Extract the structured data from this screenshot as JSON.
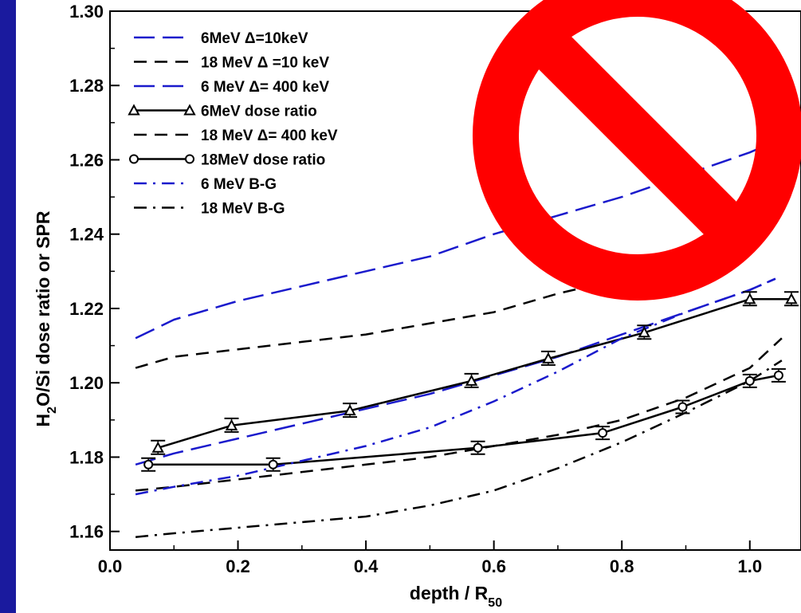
{
  "chart_data": {
    "type": "line",
    "xlabel": "depth / R",
    "xlabel_sub": "50",
    "ylabel_pre": "H",
    "ylabel_sub": "2",
    "ylabel_post": "O/Si dose ratio or SPR",
    "xlim": [
      0.0,
      1.08
    ],
    "ylim": [
      1.155,
      1.3
    ],
    "xticks": [
      0.0,
      0.2,
      0.4,
      0.6,
      0.8,
      1.0
    ],
    "xtick_labels": [
      "0.0",
      "0.2",
      "0.4",
      "0.6",
      "0.8",
      "1.0"
    ],
    "yticks": [
      1.16,
      1.18,
      1.2,
      1.22,
      1.24,
      1.26,
      1.28,
      1.3
    ],
    "ytick_labels": [
      "1.16",
      "1.18",
      "1.20",
      "1.22",
      "1.24",
      "1.26",
      "1.28",
      "1.30"
    ],
    "legend_position": "top-left",
    "series": [
      {
        "name": "6MeV Δ=10keV",
        "color": "#1a1acc",
        "style": "long-dash",
        "x": [
          0.04,
          0.1,
          0.2,
          0.3,
          0.4,
          0.5,
          0.6,
          0.7,
          0.8,
          0.9,
          1.0,
          1.04
        ],
        "y": [
          1.212,
          1.217,
          1.222,
          1.226,
          1.23,
          1.234,
          1.24,
          1.245,
          1.25,
          1.256,
          1.262,
          1.265
        ]
      },
      {
        "name": "18 MeV Δ =10 keV",
        "color": "#000000",
        "style": "dash",
        "x": [
          0.04,
          0.1,
          0.2,
          0.3,
          0.4,
          0.5,
          0.6,
          0.7,
          0.8,
          0.9,
          1.0,
          1.05
        ],
        "y": [
          1.204,
          1.207,
          1.209,
          1.211,
          1.213,
          1.216,
          1.219,
          1.224,
          1.228,
          1.234,
          1.242,
          1.248
        ]
      },
      {
        "name": "6 MeV Δ= 400 keV",
        "color": "#1a1acc",
        "style": "long-dash",
        "x": [
          0.04,
          0.1,
          0.2,
          0.3,
          0.4,
          0.5,
          0.6,
          0.7,
          0.8,
          0.9,
          1.0,
          1.04
        ],
        "y": [
          1.178,
          1.181,
          1.185,
          1.189,
          1.193,
          1.197,
          1.202,
          1.207,
          1.213,
          1.219,
          1.225,
          1.228
        ]
      },
      {
        "name": "6MeV dose ratio",
        "color": "#000000",
        "style": "solid",
        "marker": "triangle",
        "x": [
          0.075,
          0.19,
          0.375,
          0.565,
          0.685,
          0.835,
          1.0,
          1.065
        ],
        "y": [
          1.1825,
          1.1885,
          1.1925,
          1.2005,
          1.2065,
          1.2135,
          1.2225,
          1.2225
        ]
      },
      {
        "name": "18 MeV Δ= 400 keV",
        "color": "#000000",
        "style": "dash",
        "x": [
          0.04,
          0.1,
          0.2,
          0.3,
          0.4,
          0.5,
          0.6,
          0.7,
          0.8,
          0.9,
          1.0,
          1.05
        ],
        "y": [
          1.171,
          1.172,
          1.174,
          1.176,
          1.178,
          1.18,
          1.183,
          1.186,
          1.19,
          1.196,
          1.204,
          1.212
        ]
      },
      {
        "name": "18MeV dose ratio",
        "color": "#000000",
        "style": "solid",
        "marker": "circle",
        "x": [
          0.06,
          0.255,
          0.575,
          0.77,
          0.895,
          1.0,
          1.045
        ],
        "y": [
          1.178,
          1.178,
          1.1825,
          1.1865,
          1.1935,
          1.2005,
          1.202
        ]
      },
      {
        "name": "6 MeV B-G",
        "color": "#1a1acc",
        "style": "dash-dot",
        "x": [
          0.04,
          0.1,
          0.2,
          0.3,
          0.4,
          0.5,
          0.6,
          0.7,
          0.8,
          0.9,
          1.0,
          1.04
        ],
        "y": [
          1.17,
          1.172,
          1.175,
          1.179,
          1.183,
          1.188,
          1.195,
          1.203,
          1.212,
          1.219,
          1.225,
          1.228
        ]
      },
      {
        "name": "18 MeV B-G",
        "color": "#000000",
        "style": "dash-dot",
        "x": [
          0.04,
          0.1,
          0.2,
          0.3,
          0.4,
          0.5,
          0.6,
          0.7,
          0.8,
          0.9,
          1.0,
          1.05
        ],
        "y": [
          1.1585,
          1.1595,
          1.161,
          1.1625,
          1.164,
          1.167,
          1.171,
          1.177,
          1.184,
          1.192,
          1.2005,
          1.206
        ]
      }
    ]
  },
  "overlay": {
    "symbol": "prohibition-sign",
    "color": "#ff0000"
  }
}
